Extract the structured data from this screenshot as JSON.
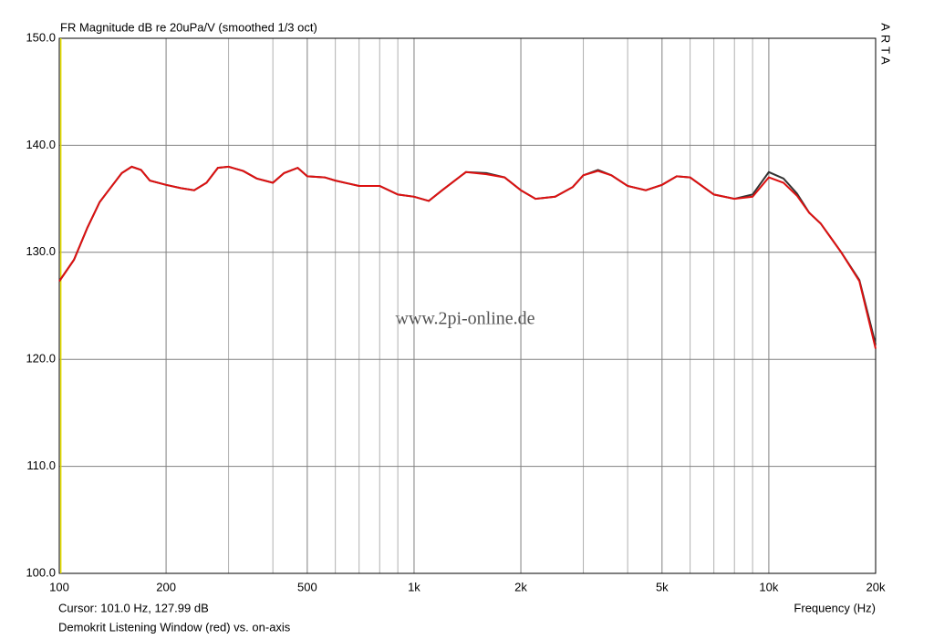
{
  "chart_data": {
    "type": "line",
    "title": "FR Magnitude dB re 20uPa/V (smoothed 1/3 oct)",
    "x_label": "Frequency (Hz)",
    "caption": "Demokrit Listening Window (red) vs. on-axis",
    "watermark": "www.2pi-online.de",
    "brand": "ARTA",
    "cursor": {
      "label": "Cursor: 101.0 Hz, 127.99 dB",
      "x": 101,
      "color": "#e8e000"
    },
    "x_log": true,
    "grid": true,
    "xlim": [
      100,
      20000
    ],
    "ylim": [
      100,
      150
    ],
    "xticks": [
      100,
      200,
      500,
      {
        "value": 1000,
        "label": "1k"
      },
      {
        "value": 2000,
        "label": "2k"
      },
      {
        "value": 5000,
        "label": "5k"
      },
      {
        "value": 10000,
        "label": "10k"
      },
      {
        "value": 20000,
        "label": "20k"
      }
    ],
    "x_minor_ticks": [
      300,
      400,
      600,
      700,
      800,
      900,
      3000,
      4000,
      6000,
      7000,
      8000,
      9000
    ],
    "yticks": [
      {
        "value": 100,
        "label": "100.0"
      },
      {
        "value": 110,
        "label": "110.0"
      },
      {
        "value": 120,
        "label": "120.0"
      },
      {
        "value": 130,
        "label": "130.0"
      },
      {
        "value": 140,
        "label": "140.0"
      },
      {
        "value": 150,
        "label": "150.0"
      }
    ],
    "x": [
      100,
      110,
      120,
      130,
      140,
      150,
      160,
      170,
      180,
      200,
      220,
      240,
      260,
      280,
      300,
      330,
      360,
      400,
      430,
      470,
      500,
      560,
      600,
      700,
      800,
      900,
      1000,
      1100,
      1200,
      1400,
      1600,
      1800,
      2000,
      2200,
      2500,
      2800,
      3000,
      3300,
      3600,
      4000,
      4500,
      5000,
      5500,
      6000,
      7000,
      8000,
      9000,
      10000,
      11000,
      12000,
      13000,
      14000,
      15000,
      16000,
      18000,
      20000
    ],
    "series": [
      {
        "color": "#333333",
        "values": [
          127.3,
          129.3,
          132.3,
          134.7,
          136.1,
          137.4,
          138.0,
          137.7,
          136.7,
          136.3,
          136.0,
          135.8,
          136.5,
          137.9,
          138.0,
          137.6,
          136.9,
          136.5,
          137.4,
          137.9,
          137.1,
          137.0,
          136.7,
          136.2,
          136.2,
          135.4,
          135.2,
          134.8,
          135.8,
          137.5,
          137.4,
          137.0,
          135.8,
          135.0,
          135.2,
          136.1,
          137.2,
          137.7,
          137.2,
          136.2,
          135.8,
          136.3,
          137.1,
          137.0,
          135.4,
          135.0,
          135.4,
          137.5,
          136.9,
          135.5,
          133.7,
          132.7,
          131.3,
          130.0,
          127.4,
          121.4
        ]
      },
      {
        "color": "#dd1111",
        "values": [
          127.3,
          129.3,
          132.3,
          134.7,
          136.1,
          137.4,
          138.0,
          137.7,
          136.7,
          136.3,
          136.0,
          135.8,
          136.5,
          137.9,
          138.0,
          137.6,
          136.9,
          136.5,
          137.4,
          137.9,
          137.1,
          137.0,
          136.7,
          136.2,
          136.2,
          135.4,
          135.2,
          134.8,
          135.8,
          137.5,
          137.3,
          137.0,
          135.8,
          135.0,
          135.2,
          136.1,
          137.2,
          137.6,
          137.2,
          136.2,
          135.8,
          136.3,
          137.1,
          137.0,
          135.4,
          135.0,
          135.2,
          137.0,
          136.5,
          135.3,
          133.7,
          132.7,
          131.3,
          130.0,
          127.3,
          121.0
        ]
      }
    ]
  }
}
